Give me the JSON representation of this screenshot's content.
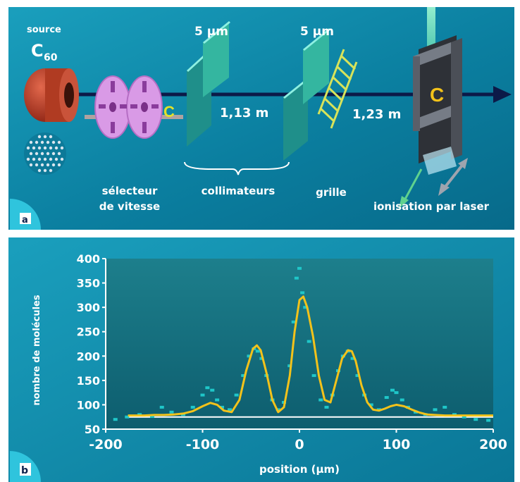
{
  "panel_a": {
    "badge": "a",
    "source_label": "source",
    "source_molecule": "C",
    "source_subscript": "60",
    "slit1_width": "5 µm",
    "slit2_width": "5 µm",
    "distance1": "1,13 m",
    "distance2": "1,23 m",
    "selector_label_line1": "sélecteur",
    "selector_label_line2": "de vitesse",
    "collimators_label": "collimateurs",
    "grating_label": "grille",
    "ionisation_label": "ionisation par laser",
    "colors": {
      "background": "#0e86a6",
      "beam": "#0c1a48",
      "source": "#c0402a",
      "selector": "#d99ae6",
      "slit": "#34b6a0",
      "grating": "#d7e35a",
      "detector": "#4b4f57",
      "laser": "#6ee3b4"
    }
  },
  "panel_b": {
    "badge": "b",
    "chart_data": {
      "type": "line",
      "xlabel": "position (µm)",
      "ylabel": "nombre de molécules",
      "xlim": [
        -200,
        200
      ],
      "ylim": [
        50,
        400
      ],
      "xticks": [
        "-200",
        "-100",
        "0",
        "100",
        "200"
      ],
      "yticks": [
        "400",
        "350",
        "300",
        "250",
        "200",
        "150",
        "100",
        "50"
      ],
      "baseline": 75,
      "series": [
        {
          "style": "fit-line",
          "color": "#f3c21a",
          "x": [
            -177,
            -170,
            -160,
            -150,
            -140,
            -130,
            -120,
            -110,
            -100,
            -92,
            -85,
            -78,
            -70,
            -62,
            -55,
            -48,
            -44,
            -40,
            -34,
            -28,
            -22,
            -16,
            -10,
            -5,
            0,
            4,
            8,
            14,
            20,
            26,
            32,
            38,
            44,
            50,
            54,
            58,
            64,
            70,
            76,
            82,
            88,
            94,
            100,
            108,
            116,
            124,
            132,
            140,
            150,
            160,
            170,
            180,
            190,
            200
          ],
          "y": [
            78,
            78,
            78,
            79,
            79,
            80,
            82,
            87,
            97,
            104,
            100,
            88,
            85,
            110,
            170,
            215,
            222,
            212,
            165,
            110,
            85,
            95,
            160,
            250,
            315,
            322,
            300,
            240,
            160,
            110,
            105,
            150,
            195,
            212,
            210,
            190,
            140,
            105,
            90,
            88,
            92,
            97,
            100,
            97,
            90,
            84,
            80,
            79,
            78,
            78,
            78,
            78,
            78,
            78
          ]
        },
        {
          "style": "data-points",
          "color": "#1fc7c9",
          "x": [
            -190,
            -178,
            -165,
            -152,
            -142,
            -132,
            -120,
            -110,
            -100,
            -95,
            -90,
            -85,
            -80,
            -72,
            -65,
            -58,
            -52,
            -47,
            -43,
            -39,
            -34,
            -28,
            -22,
            -16,
            -10,
            -6,
            -3,
            0,
            3,
            6,
            10,
            15,
            22,
            28,
            34,
            40,
            45,
            50,
            55,
            60,
            67,
            74,
            82,
            90,
            96,
            100,
            106,
            112,
            120,
            130,
            140,
            150,
            160,
            170,
            182,
            195
          ],
          "y": [
            70,
            75,
            80,
            76,
            95,
            85,
            80,
            95,
            120,
            135,
            130,
            110,
            95,
            90,
            120,
            160,
            200,
            215,
            210,
            195,
            160,
            110,
            90,
            105,
            180,
            270,
            360,
            380,
            330,
            300,
            230,
            160,
            110,
            95,
            120,
            170,
            200,
            210,
            195,
            160,
            120,
            100,
            90,
            115,
            130,
            125,
            110,
            95,
            85,
            80,
            90,
            95,
            80,
            75,
            70,
            68
          ]
        }
      ]
    }
  }
}
